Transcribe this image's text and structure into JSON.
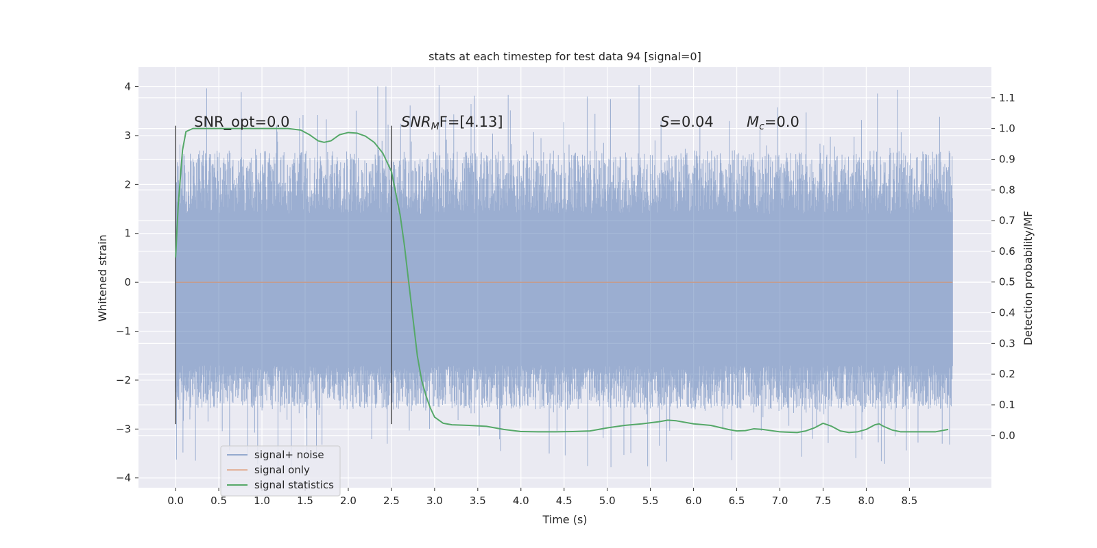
{
  "chart_data": {
    "type": "line",
    "title": "stats at each timestep for test data 94 [signal=0]",
    "xlabel": "Time (s)",
    "ylabel": "Whitened strain",
    "y2label": "Detection probability/MF",
    "xlim": [
      -0.43,
      9.45
    ],
    "ylim": [
      -4.2,
      4.4
    ],
    "y2lim": [
      -0.17,
      1.2
    ],
    "x_ticks": [
      0.0,
      0.5,
      1.0,
      1.5,
      2.0,
      2.5,
      3.0,
      3.5,
      4.0,
      4.5,
      5.0,
      5.5,
      6.0,
      6.5,
      7.0,
      7.5,
      8.0,
      8.5
    ],
    "x_tick_labels": [
      "0.0",
      "0.5",
      "1.0",
      "1.5",
      "2.0",
      "2.5",
      "3.0",
      "3.5",
      "4.0",
      "4.5",
      "5.0",
      "5.5",
      "6.0",
      "6.5",
      "7.0",
      "7.5",
      "8.0",
      "8.5"
    ],
    "y_ticks": [
      4,
      3,
      2,
      1,
      0,
      -1,
      -2,
      -3,
      -4
    ],
    "y_tick_labels": [
      "4",
      "3",
      "2",
      "1",
      "0",
      "−1",
      "−2",
      "−3",
      "−4"
    ],
    "y2_ticks": [
      1.1,
      1.0,
      0.9,
      0.8,
      0.7,
      0.6,
      0.5,
      0.4,
      0.3,
      0.2,
      0.1,
      0.0
    ],
    "y2_tick_labels": [
      "1.1",
      "1.0",
      "0.9",
      "0.8",
      "0.7",
      "0.6",
      "0.5",
      "0.4",
      "0.3",
      "0.2",
      "0.1",
      "0.0"
    ],
    "annotations": {
      "snr_opt": "SNR_opt=0.0",
      "snr_mf_main": "SNR",
      "snr_mf_sub": "M",
      "snr_mf_rest": "F=[4.13]",
      "s_main": "S",
      "s_rest": "=0.04",
      "mc_main": "M",
      "mc_sub": "c",
      "mc_rest": "=0.0"
    },
    "vlines": [
      {
        "x": 0.0,
        "y0": -2.9,
        "y1": 3.2
      },
      {
        "x": 2.5,
        "y0": -2.9,
        "y1": 3.2
      }
    ],
    "series": [
      {
        "name": "signal+ noise",
        "color": "#4c72b0",
        "axis": "left",
        "style": "noise",
        "x_range": [
          0.0,
          9.0
        ],
        "band_typical": [
          -1.7,
          1.4
        ],
        "peak_range": [
          -3.8,
          4.05
        ]
      },
      {
        "name": "signal only",
        "color": "#dd8452",
        "axis": "left",
        "x": [
          0.0,
          9.0
        ],
        "y": [
          0.0,
          0.0
        ]
      },
      {
        "name": "signal statistics",
        "color": "#55a868",
        "axis": "right",
        "x": [
          0.0,
          0.03,
          0.08,
          0.12,
          0.2,
          0.3,
          0.5,
          0.8,
          1.0,
          1.3,
          1.45,
          1.55,
          1.65,
          1.72,
          1.8,
          1.9,
          2.0,
          2.1,
          2.2,
          2.3,
          2.4,
          2.5,
          2.6,
          2.65,
          2.7,
          2.75,
          2.8,
          2.85,
          2.9,
          2.95,
          3.0,
          3.1,
          3.2,
          3.4,
          3.6,
          3.8,
          4.0,
          4.2,
          4.4,
          4.6,
          4.8,
          5.0,
          5.2,
          5.4,
          5.6,
          5.7,
          5.8,
          6.0,
          6.2,
          6.4,
          6.5,
          6.6,
          6.7,
          6.8,
          7.0,
          7.2,
          7.3,
          7.4,
          7.5,
          7.6,
          7.7,
          7.8,
          7.9,
          8.0,
          8.1,
          8.15,
          8.2,
          8.3,
          8.4,
          8.6,
          8.8,
          8.95
        ],
        "y": [
          0.58,
          0.75,
          0.93,
          0.99,
          1.0,
          1.0,
          1.0,
          1.0,
          1.0,
          1.0,
          0.995,
          0.98,
          0.96,
          0.955,
          0.96,
          0.98,
          0.987,
          0.985,
          0.975,
          0.955,
          0.92,
          0.86,
          0.72,
          0.62,
          0.5,
          0.38,
          0.26,
          0.18,
          0.13,
          0.09,
          0.06,
          0.04,
          0.035,
          0.033,
          0.03,
          0.02,
          0.013,
          0.012,
          0.012,
          0.013,
          0.015,
          0.025,
          0.033,
          0.038,
          0.045,
          0.05,
          0.048,
          0.038,
          0.033,
          0.02,
          0.015,
          0.016,
          0.022,
          0.02,
          0.012,
          0.01,
          0.015,
          0.025,
          0.04,
          0.03,
          0.015,
          0.01,
          0.012,
          0.02,
          0.035,
          0.038,
          0.03,
          0.018,
          0.012,
          0.012,
          0.012,
          0.02
        ]
      }
    ],
    "legend": {
      "position": "lower-left",
      "entries": [
        "signal+ noise",
        "signal only",
        "signal statistics"
      ]
    },
    "background_color": "#eaeaf2",
    "grid": true
  }
}
